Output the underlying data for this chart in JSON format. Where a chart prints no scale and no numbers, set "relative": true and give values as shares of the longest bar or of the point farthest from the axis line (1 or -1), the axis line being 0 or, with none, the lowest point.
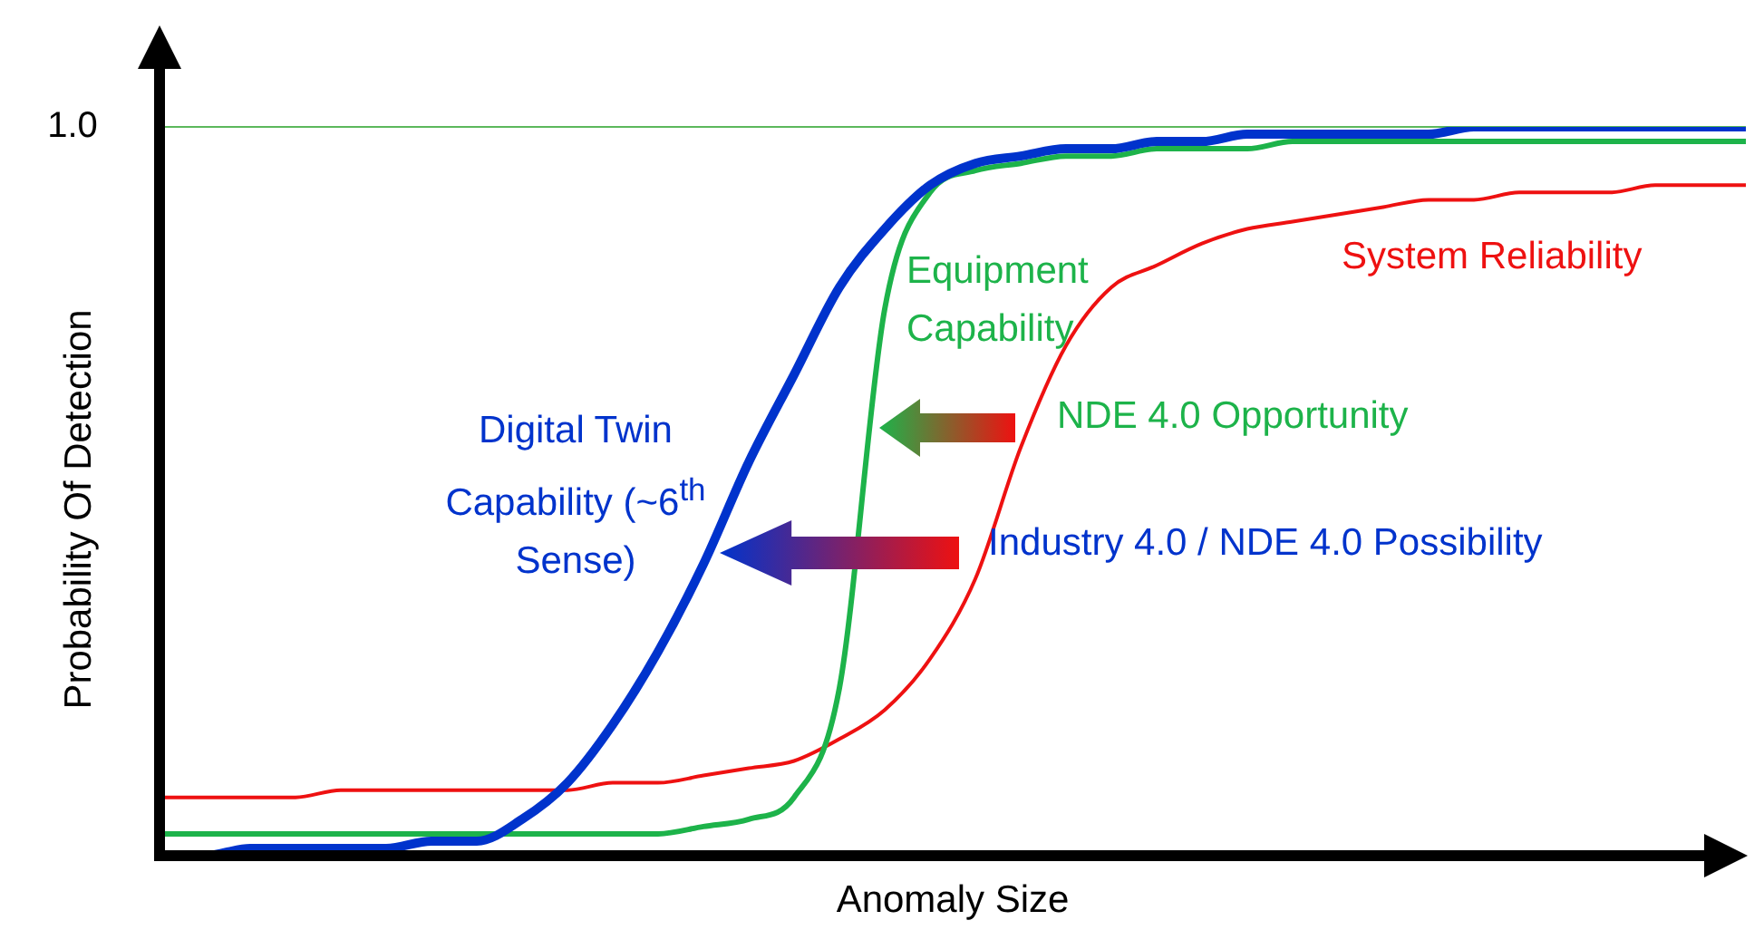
{
  "chart_data": {
    "type": "line",
    "relative": true,
    "xlabel": "Anomaly Size",
    "ylabel": "Probability Of Detection",
    "legend": false,
    "grid": false,
    "marker": "none",
    "categories": [
      null,
      null,
      null,
      null,
      null,
      null,
      null,
      null,
      null,
      null,
      null,
      null,
      null,
      null,
      null,
      null,
      null,
      null,
      null,
      null,
      null,
      null,
      null,
      null,
      null,
      null,
      null,
      null,
      null,
      null,
      null,
      null,
      null,
      null,
      null,
      null
    ],
    "series": [
      {
        "name": "Digital Twin Capability (~6$^{th}$ Sense)",
        "color": "#0033cc",
        "values": [
          0,
          0,
          0.01,
          0.01,
          0.01,
          0.01,
          0.02,
          0.02,
          0.05,
          0.1,
          0.18,
          0.28,
          0.4,
          0.54,
          0.66,
          0.78,
          0.86,
          0.92,
          0.95,
          0.96,
          0.97,
          0.97,
          0.98,
          0.98,
          0.99,
          0.99,
          0.99,
          0.99,
          0.99,
          1,
          1,
          1,
          1,
          1,
          1,
          1
        ]
      },
      {
        "name": "Equipment Capability",
        "color": "#1db34a",
        "values": [
          0.03,
          0.03,
          0.03,
          0.03,
          0.03,
          0.03,
          0.03,
          0.03,
          0.03,
          0.03,
          0.03,
          0.03,
          0.04,
          0.05,
          0.08,
          0.23,
          0.75,
          0.91,
          0.94,
          0.95,
          0.96,
          0.96,
          0.97,
          0.97,
          0.97,
          0.98,
          0.98,
          0.98,
          0.98,
          0.98,
          0.98,
          0.98,
          0.98,
          0.98,
          0.98,
          0.98
        ]
      },
      {
        "name": "System Reliability",
        "color": "#ee1111",
        "values": [
          0.08,
          0.08,
          0.08,
          0.08,
          0.09,
          0.09,
          0.09,
          0.09,
          0.09,
          0.09,
          0.1,
          0.1,
          0.11,
          0.12,
          0.13,
          0.16,
          0.2,
          0.27,
          0.38,
          0.56,
          0.7,
          0.78,
          0.81,
          0.84,
          0.86,
          0.87,
          0.88,
          0.89,
          0.9,
          0.9,
          0.91,
          0.91,
          0.91,
          0.92,
          0.92,
          0.92
        ]
      }
    ],
    "ref_lines": [
      {
        "axis": "y",
        "value": 1,
        "label": "1.0",
        "color": "#5cb85c"
      }
    ],
    "annotations": [
      "NDE 4.0 Opportunity",
      "Industry 4.0 / NDE 4.0 Possibility"
    ]
  }
}
